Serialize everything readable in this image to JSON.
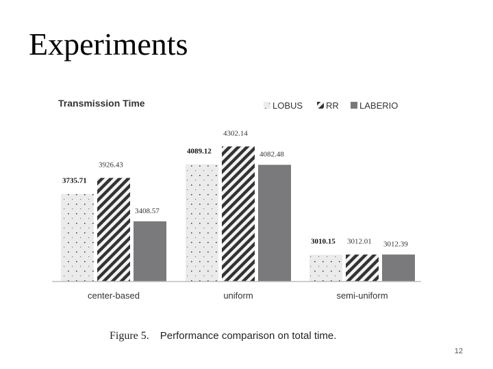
{
  "slide": {
    "title": "Experiments",
    "page_number": "12"
  },
  "caption": {
    "label": "Figure 5.",
    "text": "Performance comparison on total time."
  },
  "chart_data": {
    "type": "bar",
    "title": "Transmission Time",
    "categories": [
      "center-based",
      "uniform",
      "semi-uniform"
    ],
    "series": [
      {
        "name": "LOBUS",
        "values": [
          3735.71,
          4089.12,
          3010.15
        ],
        "labels": [
          "3735.71",
          "4089.12",
          "3010.15"
        ],
        "pattern": "dots",
        "color": "#e6e6e6"
      },
      {
        "name": "RR",
        "values": [
          3926.43,
          4302.14,
          3012.01
        ],
        "labels": [
          "3926.43",
          "4302.14",
          "3012.01"
        ],
        "pattern": "stripes",
        "color": "#3a3a3a"
      },
      {
        "name": "LABERIO",
        "values": [
          3408.57,
          4082.48,
          3012.39
        ],
        "labels": [
          "3408.57",
          "4082.48",
          "3012.39"
        ],
        "pattern": "solid",
        "color": "#7a7a7c"
      }
    ],
    "ylim": [
      2690,
      4500
    ],
    "grid": false,
    "legend_position": "top-right",
    "xlabel": "",
    "ylabel": ""
  }
}
